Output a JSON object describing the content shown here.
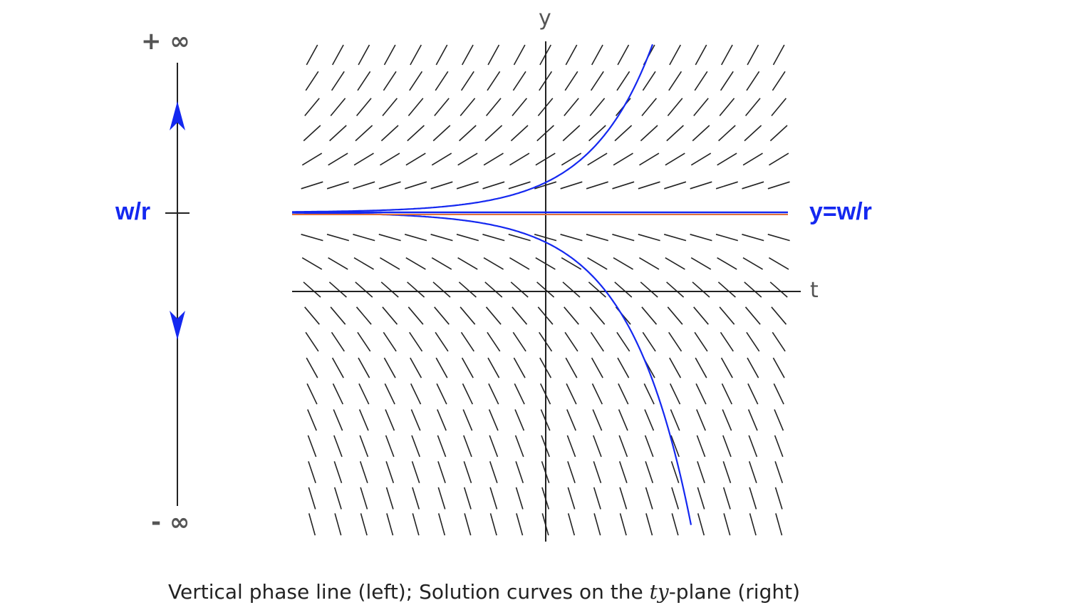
{
  "phase_line": {
    "top_label": "+ ∞",
    "bottom_label": "- ∞",
    "equilibrium_label": "w/r",
    "arrow_above": "up",
    "arrow_below": "down"
  },
  "plane": {
    "x_axis_label": "t",
    "y_axis_label": "y",
    "equilibrium_curve_label": "y=w/r"
  },
  "caption": {
    "before": "Vertical phase line (left); Solution curves on the ",
    "math": "ty",
    "after": "-plane (right)"
  },
  "colors": {
    "curve": "#1428f0",
    "equilibrium_overlay": "#e0703a",
    "slope_marks": "#222222",
    "axes": "#222222"
  }
}
